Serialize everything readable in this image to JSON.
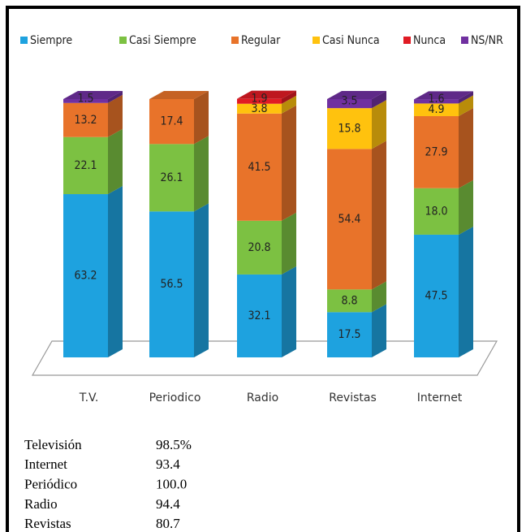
{
  "chart_data": {
    "type": "bar",
    "stacked": true,
    "three_d": true,
    "legend": "top",
    "categories": [
      "T.V.",
      "Periodico",
      "Radio",
      "Revistas",
      "Internet"
    ],
    "series": [
      {
        "name": "Siempre",
        "color": "#1ea2df",
        "values": [
          63.2,
          56.5,
          32.1,
          17.5,
          47.5
        ]
      },
      {
        "name": "Casi Siempre",
        "color": "#7cc142",
        "values": [
          22.1,
          26.1,
          20.8,
          8.8,
          18
        ],
        "value_labels": [
          "22.1",
          "26.1",
          "20.8",
          "8.8",
          "18.0"
        ]
      },
      {
        "name": "Regular",
        "color": "#e8732a",
        "values": [
          13.2,
          17.4,
          41.5,
          54.4,
          27.9
        ]
      },
      {
        "name": "Casi Nunca",
        "color": "#ffc20e",
        "values": [
          null,
          null,
          3.8,
          15.8,
          4.9
        ]
      },
      {
        "name": "Nunca",
        "color": "#e01b24",
        "values": [
          null,
          null,
          1.9,
          null,
          null
        ]
      },
      {
        "name": "NS/NR",
        "color": "#7030a0",
        "values": [
          1.5,
          null,
          null,
          3.5,
          1.6
        ]
      }
    ]
  },
  "table": {
    "rows": [
      [
        "Televisión",
        "98.5%"
      ],
      [
        "Internet",
        "93.4"
      ],
      [
        "Periódico",
        "100.0"
      ],
      [
        "Radio",
        "94.4"
      ],
      [
        "Revistas",
        "80.7"
      ]
    ]
  }
}
